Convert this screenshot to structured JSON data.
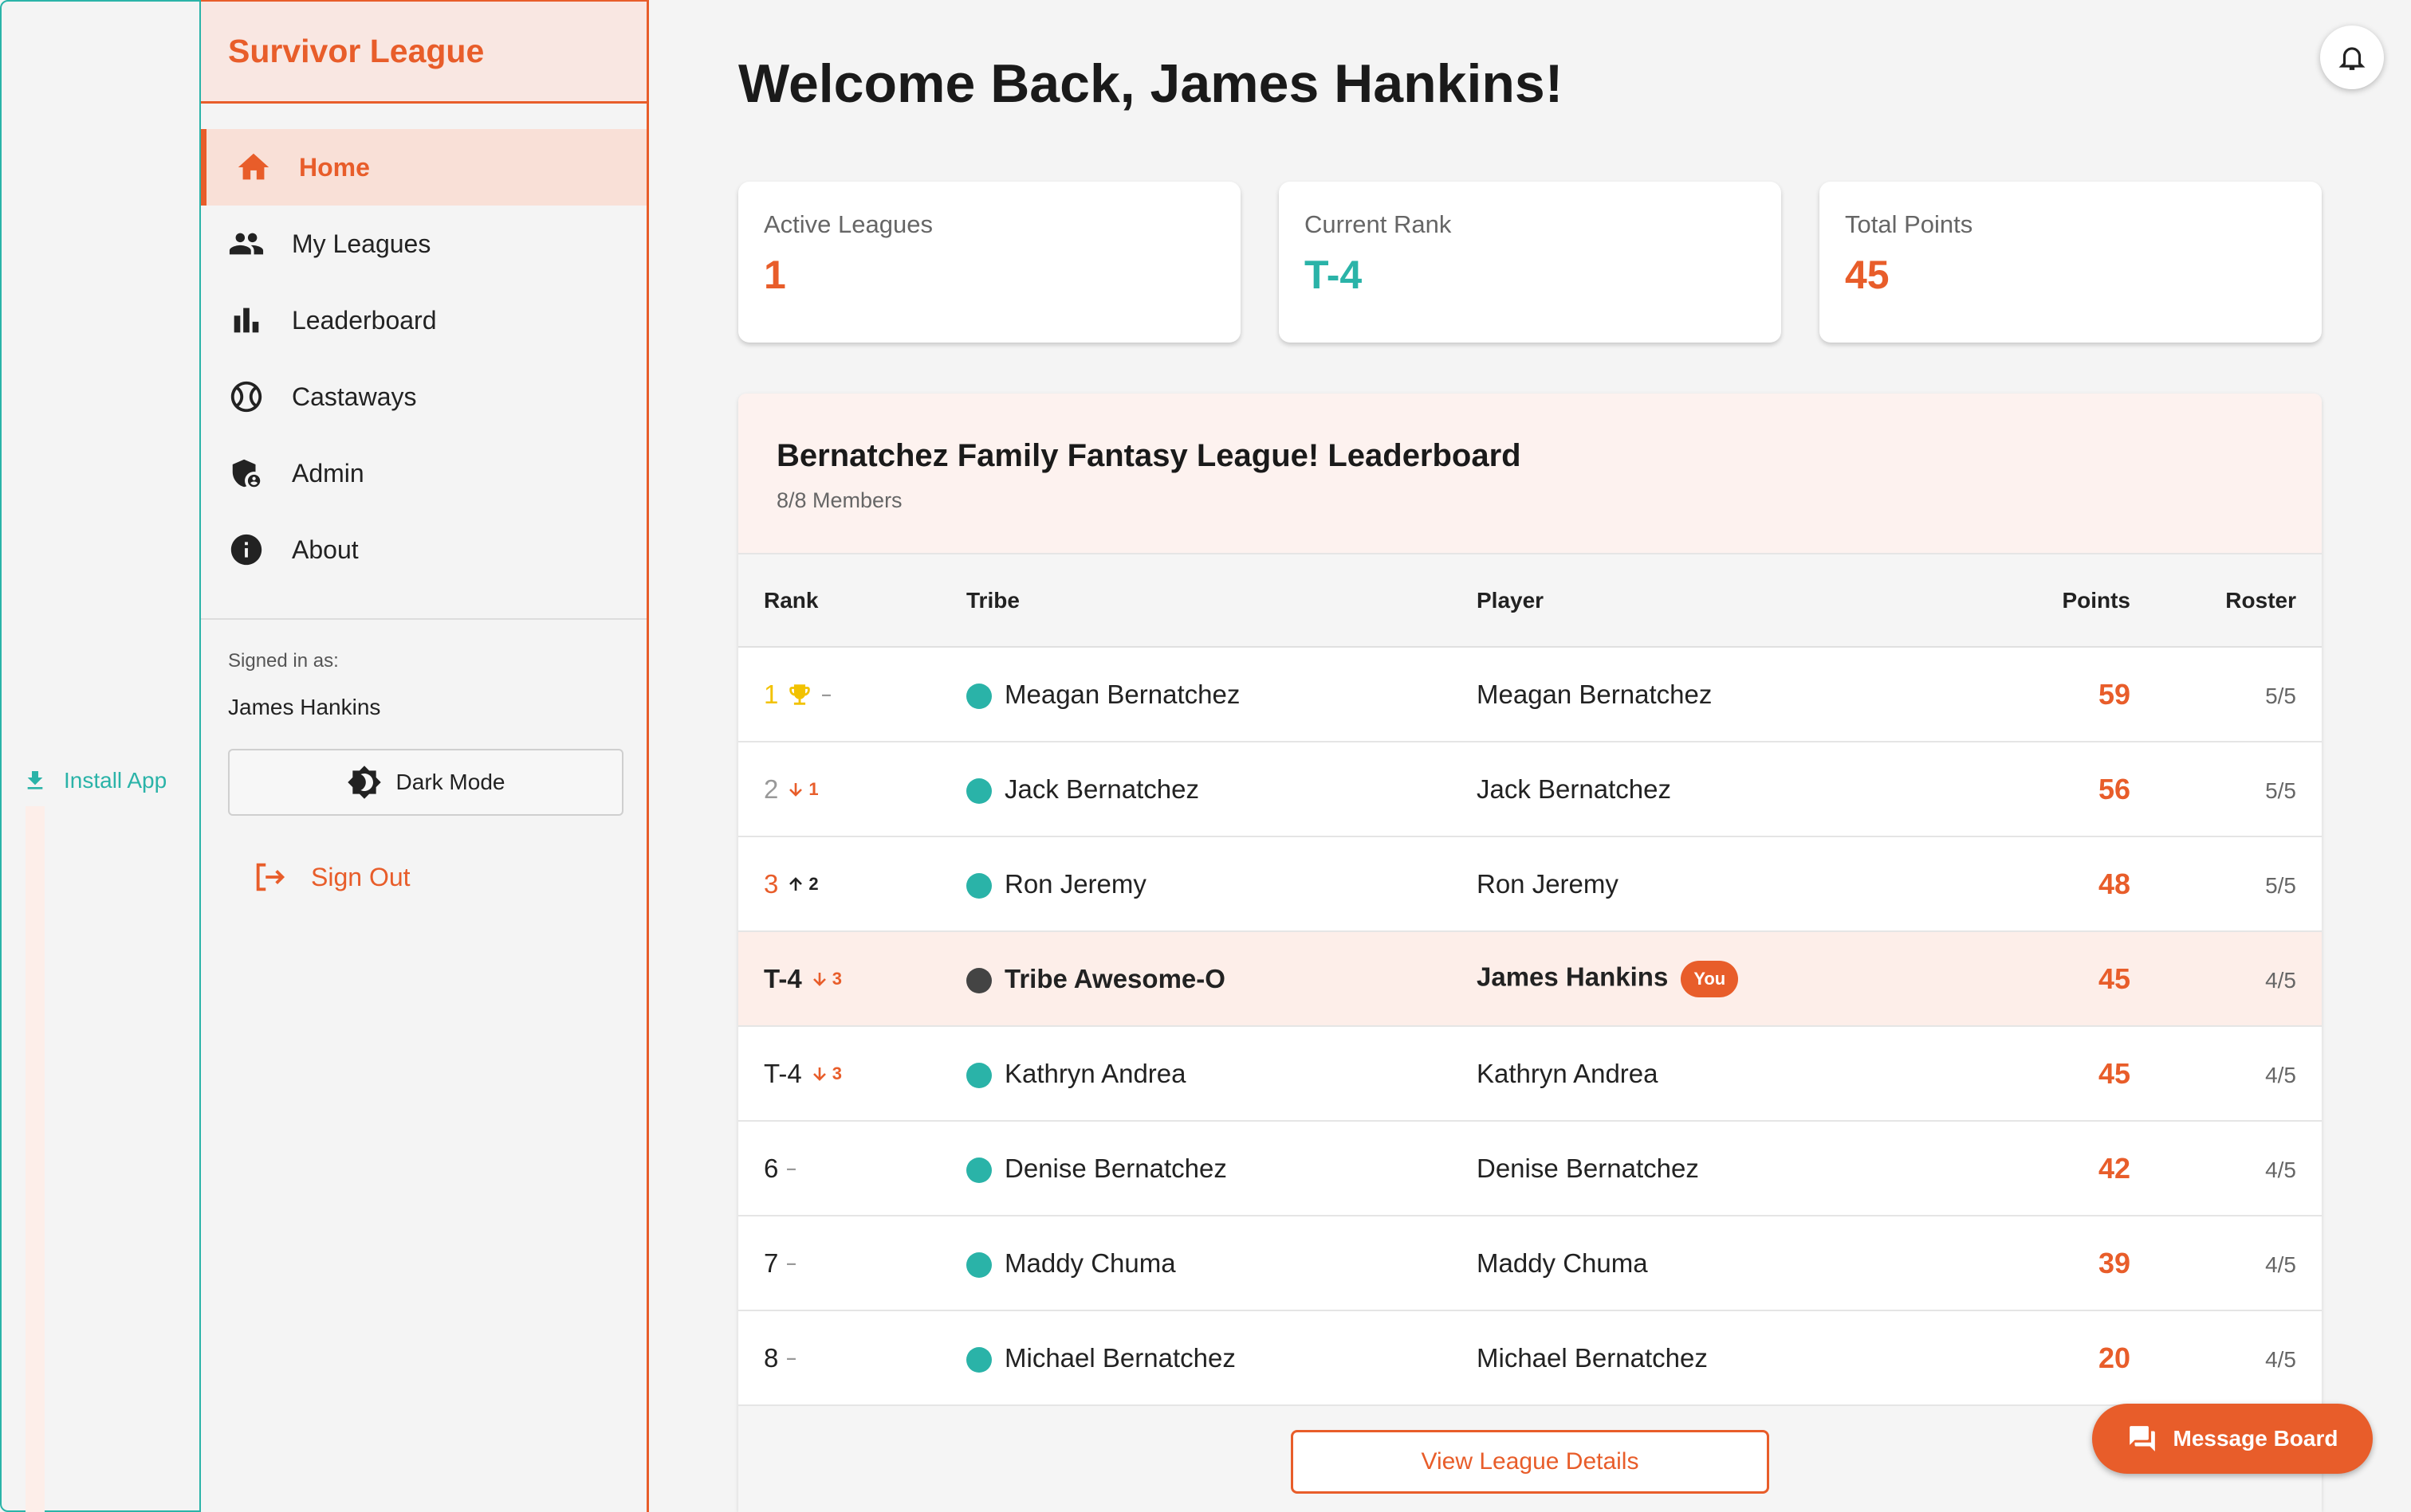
{
  "rail": {
    "install_label": "Install App"
  },
  "sidebar": {
    "brand": "Survivor League",
    "items": [
      {
        "label": "Home",
        "icon": "home-icon",
        "active": true
      },
      {
        "label": "My Leagues",
        "icon": "group-icon"
      },
      {
        "label": "Leaderboard",
        "icon": "bar-chart-icon"
      },
      {
        "label": "Castaways",
        "icon": "ball-icon"
      },
      {
        "label": "Admin",
        "icon": "shield-icon"
      },
      {
        "label": "About",
        "icon": "info-icon"
      }
    ],
    "signed_in_label": "Signed in as:",
    "signed_in_name": "James Hankins",
    "dark_mode_label": "Dark Mode",
    "sign_out_label": "Sign Out"
  },
  "header": {
    "title": "Welcome Back, James Hankins!"
  },
  "stats": [
    {
      "label": "Active Leagues",
      "value": "1",
      "color": "#e85d2a"
    },
    {
      "label": "Current Rank",
      "value": "T-4",
      "color": "#2ab3a8"
    },
    {
      "label": "Total Points",
      "value": "45",
      "color": "#e85d2a"
    }
  ],
  "leaderboard": {
    "title": "Bernatchez Family Fantasy League! Leaderboard",
    "subtitle": "8/8 Members",
    "columns": {
      "rank": "Rank",
      "tribe": "Tribe",
      "player": "Player",
      "points": "Points",
      "roster": "Roster"
    },
    "rows": [
      {
        "rank": "1",
        "trend": "–",
        "trend_dir": "same",
        "trophy": true,
        "tribe": "Meagan Bernatchez",
        "dot": "#2ab3a8",
        "player": "Meagan Bernatchez",
        "points": "59",
        "roster": "5/5"
      },
      {
        "rank": "2",
        "trend": "1",
        "trend_dir": "down",
        "tribe": "Jack Bernatchez",
        "dot": "#2ab3a8",
        "player": "Jack Bernatchez",
        "points": "56",
        "roster": "5/5"
      },
      {
        "rank": "3",
        "trend": "2",
        "trend_dir": "up",
        "tribe": "Ron Jeremy",
        "dot": "#2ab3a8",
        "player": "Ron Jeremy",
        "points": "48",
        "roster": "5/5"
      },
      {
        "rank": "T-4",
        "trend": "3",
        "trend_dir": "down",
        "tribe": "Tribe Awesome-O",
        "dot": "#444444",
        "player": "James Hankins",
        "you": "You",
        "points": "45",
        "roster": "4/5"
      },
      {
        "rank": "T-4",
        "trend": "3",
        "trend_dir": "down",
        "tribe": "Kathryn Andrea",
        "dot": "#2ab3a8",
        "player": "Kathryn Andrea",
        "points": "45",
        "roster": "4/5"
      },
      {
        "rank": "6",
        "trend": "–",
        "trend_dir": "same",
        "tribe": "Denise Bernatchez",
        "dot": "#2ab3a8",
        "player": "Denise Bernatchez",
        "points": "42",
        "roster": "4/5"
      },
      {
        "rank": "7",
        "trend": "–",
        "trend_dir": "same",
        "tribe": "Maddy Chuma",
        "dot": "#2ab3a8",
        "player": "Maddy Chuma",
        "points": "39",
        "roster": "4/5"
      },
      {
        "rank": "8",
        "trend": "–",
        "trend_dir": "same",
        "tribe": "Michael Bernatchez",
        "dot": "#2ab3a8",
        "player": "Michael Bernatchez",
        "points": "20",
        "roster": "4/5"
      }
    ],
    "details_label": "View League Details"
  },
  "message_board_label": "Message Board",
  "colors": {
    "accent": "#e85d2a",
    "teal": "#2ab3a8",
    "gold": "#f2c200",
    "silver": "#999999",
    "bronze": "#e85d2a"
  }
}
